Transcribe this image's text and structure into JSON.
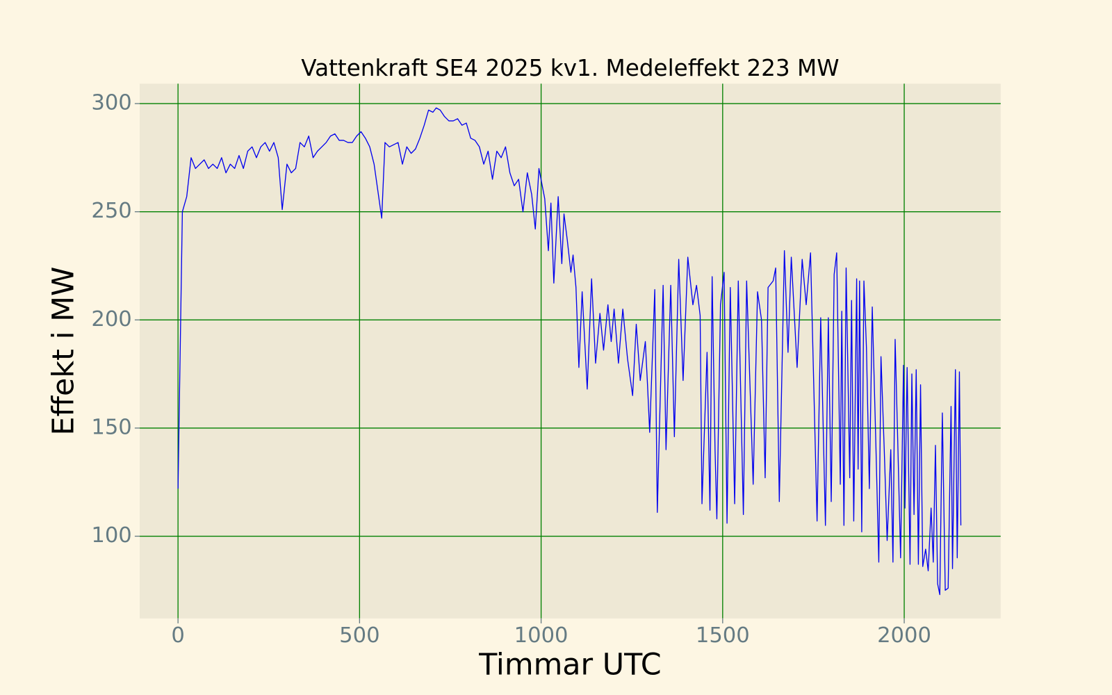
{
  "chart_data": {
    "type": "line",
    "title": "Vattenkraft SE4 2025 kv1. Medeleffekt 223 MW",
    "xlabel": "Timmar UTC",
    "ylabel": "Effekt i MW",
    "x": [
      0,
      12,
      24,
      36,
      48,
      60,
      72,
      84,
      96,
      108,
      120,
      132,
      144,
      156,
      168,
      180,
      192,
      204,
      216,
      228,
      240,
      252,
      264,
      276,
      287,
      300,
      312,
      324,
      336,
      348,
      360,
      372,
      384,
      396,
      408,
      420,
      432,
      444,
      456,
      468,
      480,
      492,
      504,
      516,
      528,
      540,
      561,
      570,
      582,
      594,
      606,
      618,
      630,
      642,
      654,
      666,
      678,
      690,
      702,
      711,
      722,
      734,
      746,
      758,
      770,
      782,
      794,
      806,
      818,
      830,
      842,
      854,
      866,
      878,
      890,
      902,
      914,
      926,
      938,
      950,
      962,
      974,
      984,
      994,
      1010,
      1020,
      1027,
      1035,
      1047,
      1057,
      1063,
      1072,
      1082,
      1088,
      1096,
      1104,
      1113,
      1127,
      1139,
      1150,
      1162,
      1172,
      1184,
      1193,
      1201,
      1213,
      1225,
      1238,
      1252,
      1262,
      1273,
      1287,
      1293,
      1299,
      1313,
      1320,
      1336,
      1344,
      1357,
      1367,
      1379,
      1391,
      1404,
      1418,
      1428,
      1438,
      1443,
      1457,
      1465,
      1471,
      1479,
      1484,
      1494,
      1504,
      1512,
      1521,
      1533,
      1543,
      1557,
      1566,
      1584,
      1596,
      1607,
      1617,
      1625,
      1639,
      1646,
      1656,
      1670,
      1680,
      1689,
      1705,
      1719,
      1730,
      1742,
      1760,
      1770,
      1783,
      1791,
      1799,
      1807,
      1814,
      1824,
      1828,
      1834,
      1840,
      1850,
      1855,
      1861,
      1869,
      1873,
      1877,
      1883,
      1889,
      1896,
      1904,
      1912,
      1922,
      1930,
      1936,
      1945,
      1953,
      1963,
      1969,
      1975,
      1982,
      1990,
      1998,
      2002,
      2008,
      2016,
      2021,
      2027,
      2033,
      2039,
      2045,
      2051,
      2059,
      2066,
      2074,
      2080,
      2086,
      2092,
      2098,
      2105,
      2113,
      2121,
      2129,
      2133,
      2141,
      2146,
      2152,
      2156
    ],
    "series": [
      {
        "name": "Effekt",
        "color": "#0000ee",
        "values": [
          122,
          250,
          257,
          275,
          270,
          272,
          274,
          270,
          272,
          270,
          275,
          268,
          272,
          270,
          276,
          270,
          278,
          280,
          275,
          280,
          282,
          278,
          282,
          275,
          251,
          272,
          268,
          270,
          282,
          280,
          285,
          275,
          278,
          280,
          282,
          285,
          286,
          283,
          283,
          282,
          282,
          285,
          287,
          284,
          280,
          272,
          247,
          282,
          280,
          281,
          282,
          272,
          280,
          277,
          279,
          284,
          290,
          297,
          296,
          298,
          297,
          294,
          292,
          292,
          293,
          290,
          291,
          284,
          283,
          280,
          272,
          278,
          265,
          278,
          275,
          280,
          268,
          262,
          265,
          250,
          268,
          258,
          242,
          270,
          256,
          232,
          254,
          217,
          257,
          226,
          249,
          237,
          222,
          230,
          215,
          178,
          213,
          168,
          219,
          180,
          203,
          186,
          207,
          190,
          205,
          180,
          205,
          182,
          165,
          198,
          172,
          190,
          170,
          148,
          214,
          111,
          216,
          140,
          216,
          146,
          228,
          172,
          229,
          207,
          216,
          202,
          115,
          185,
          112,
          220,
          140,
          108,
          207,
          222,
          106,
          215,
          115,
          218,
          110,
          218,
          124,
          213,
          200,
          127,
          215,
          218,
          224,
          116,
          232,
          185,
          229,
          178,
          228,
          207,
          231,
          107,
          201,
          105,
          201,
          116,
          221,
          231,
          124,
          204,
          105,
          224,
          127,
          209,
          107,
          219,
          131,
          218,
          102,
          218,
          187,
          122,
          206,
          142,
          88,
          183,
          140,
          98,
          140,
          88,
          191,
          145,
          90,
          179,
          113,
          178,
          87,
          175,
          110,
          177,
          87,
          170,
          86,
          94,
          84,
          113,
          88,
          142,
          78,
          73,
          157,
          75,
          76,
          160,
          85,
          177,
          90,
          176,
          105
        ]
      }
    ],
    "xlim": [
      -105.5,
      2265.6
    ],
    "ylim": [
      62,
      309.2
    ],
    "xticks": [
      0,
      500,
      1000,
      1500,
      2000
    ],
    "yticks": [
      100,
      150,
      200,
      250,
      300
    ],
    "grid": true,
    "grid_color": "#008000",
    "background": "#fdf6e3",
    "plot_background": "#eee8d5",
    "tick_color": "#657b83"
  }
}
